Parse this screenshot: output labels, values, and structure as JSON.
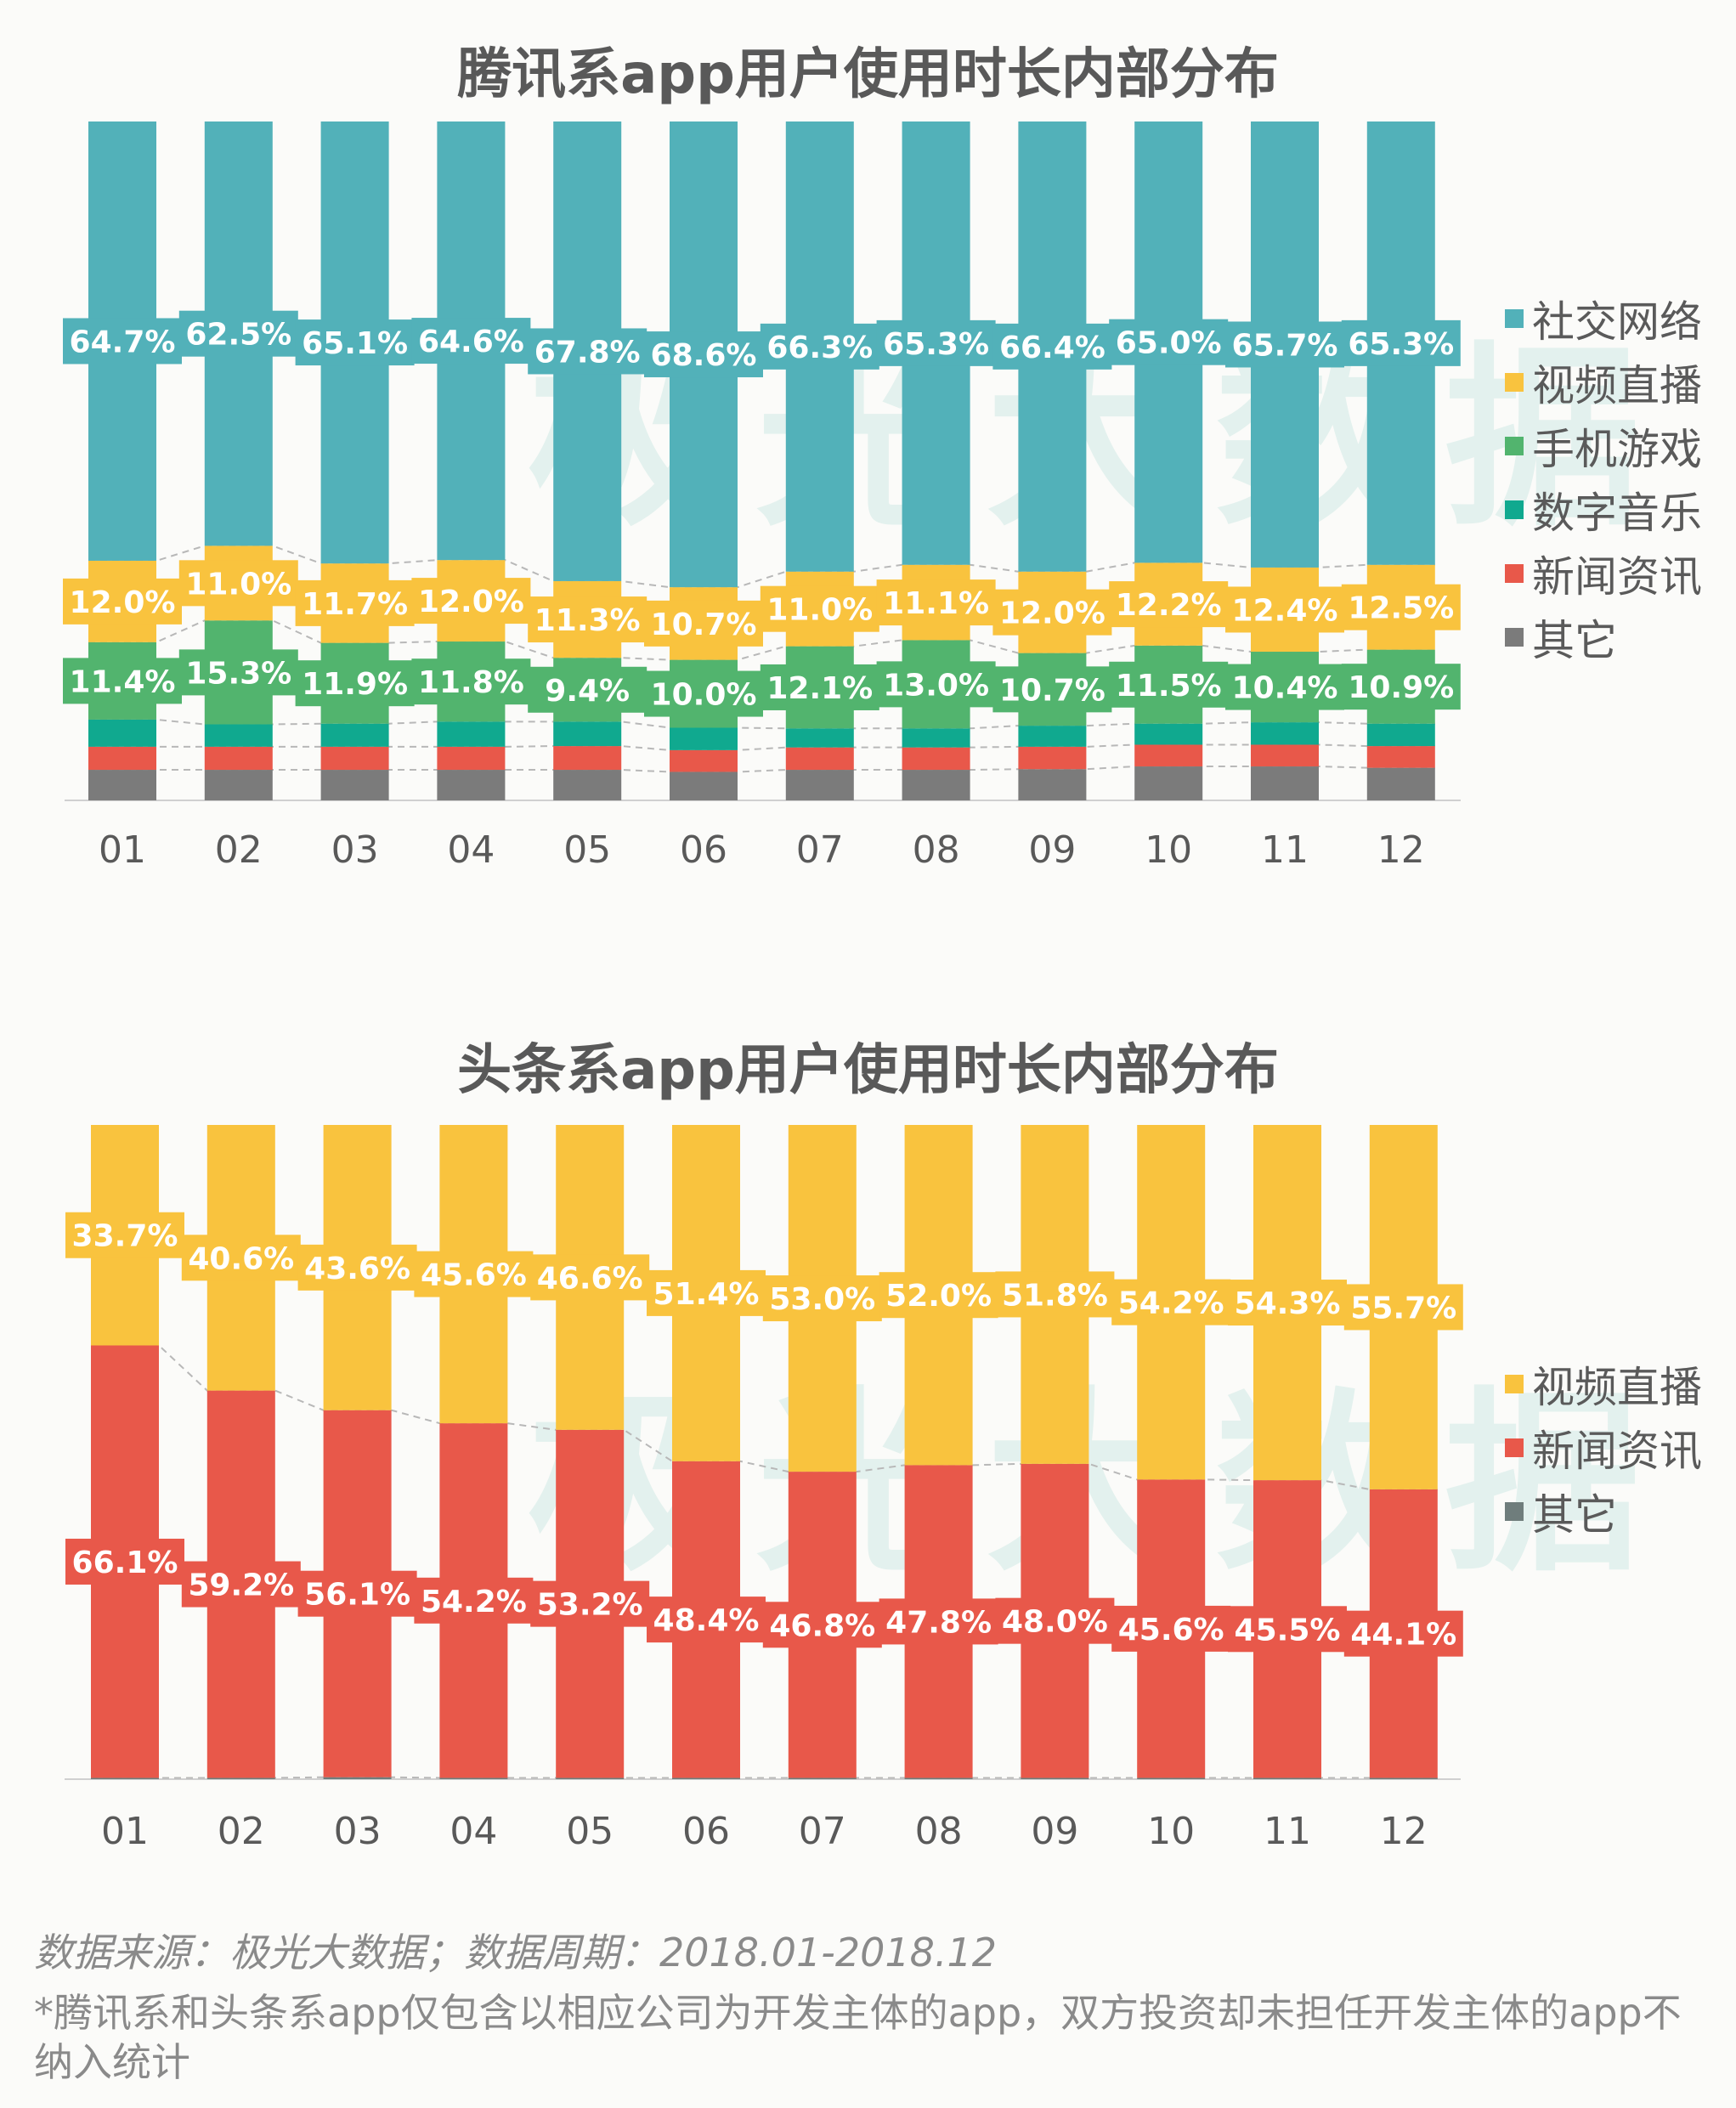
{
  "watermark": "极光大数据",
  "chart_data": [
    {
      "type": "bar",
      "stacked": true,
      "title": "腾讯系app用户使用时长内部分布",
      "categories": [
        "01",
        "02",
        "03",
        "04",
        "05",
        "06",
        "07",
        "08",
        "09",
        "10",
        "11",
        "12"
      ],
      "ylim": [
        0,
        100
      ],
      "legend_position": "right",
      "series": [
        {
          "name": "其它",
          "color": "#7b7b7b",
          "values": [
            4.5,
            4.5,
            4.5,
            4.5,
            4.5,
            4.2,
            4.5,
            4.5,
            4.6,
            5.0,
            5.0,
            4.8
          ],
          "labeled": false
        },
        {
          "name": "新闻资讯",
          "color": "#e8584a",
          "values": [
            3.4,
            3.4,
            3.4,
            3.4,
            3.5,
            3.2,
            3.3,
            3.3,
            3.3,
            3.2,
            3.2,
            3.2
          ],
          "labeled": false
        },
        {
          "name": "数字音乐",
          "color": "#10a98f",
          "values": [
            4.0,
            3.3,
            3.4,
            3.7,
            3.6,
            3.3,
            2.8,
            2.8,
            3.1,
            3.1,
            3.3,
            3.3
          ],
          "labeled": false
        },
        {
          "name": "手机游戏",
          "color": "#52b46e",
          "values": [
            11.4,
            15.3,
            11.9,
            11.8,
            9.4,
            10.0,
            12.1,
            13.0,
            10.7,
            11.5,
            10.4,
            10.9
          ],
          "labeled": true
        },
        {
          "name": "视频直播",
          "color": "#f9c33e",
          "values": [
            12.0,
            11.0,
            11.7,
            12.0,
            11.3,
            10.7,
            11.0,
            11.1,
            12.0,
            12.2,
            12.4,
            12.5
          ],
          "labeled": true
        },
        {
          "name": "社交网络",
          "color": "#52b1b9",
          "values": [
            64.7,
            62.5,
            65.1,
            64.6,
            67.8,
            68.6,
            66.3,
            65.3,
            66.4,
            65.0,
            65.7,
            65.3
          ],
          "labeled": true
        }
      ],
      "legend_order": [
        "社交网络",
        "视频直播",
        "手机游戏",
        "数字音乐",
        "新闻资讯",
        "其它"
      ]
    },
    {
      "type": "bar",
      "stacked": true,
      "title": "头条系app用户使用时长内部分布",
      "categories": [
        "01",
        "02",
        "03",
        "04",
        "05",
        "06",
        "07",
        "08",
        "09",
        "10",
        "11",
        "12"
      ],
      "ylim": [
        0,
        100
      ],
      "legend_position": "right",
      "series": [
        {
          "name": "其它",
          "color": "#6f7d7c",
          "values": [
            0.2,
            0.2,
            0.3,
            0.2,
            0.2,
            0.2,
            0.2,
            0.2,
            0.2,
            0.2,
            0.2,
            0.2
          ],
          "labeled": false
        },
        {
          "name": "新闻资讯",
          "color": "#e8584a",
          "values": [
            66.1,
            59.2,
            56.1,
            54.2,
            53.2,
            48.4,
            46.8,
            47.8,
            48.0,
            45.6,
            45.5,
            44.1
          ],
          "labeled": true
        },
        {
          "name": "视频直播",
          "color": "#f9c33e",
          "values": [
            33.7,
            40.6,
            43.6,
            45.6,
            46.6,
            51.4,
            53.0,
            52.0,
            51.8,
            54.2,
            54.3,
            55.7
          ],
          "labeled": true
        }
      ],
      "legend_order": [
        "视频直播",
        "新闻资讯",
        "其它"
      ]
    }
  ],
  "footer": {
    "source": "数据来源：极光大数据；数据周期：2018.01-2018.12",
    "note": "*腾讯系和头条系app仅包含以相应公司为开发主体的app，双方投资却未担任开发主体的app不纳入统计"
  }
}
